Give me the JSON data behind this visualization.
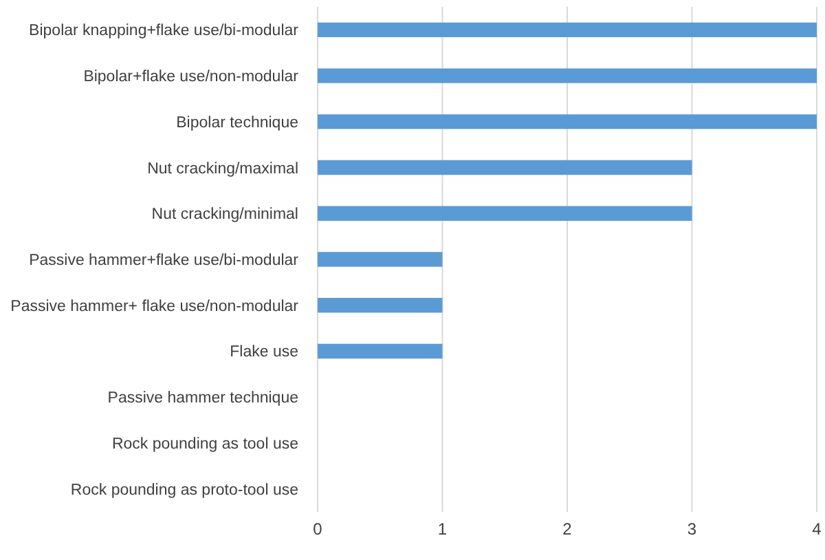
{
  "chart_data": {
    "type": "bar",
    "orientation": "horizontal",
    "categories": [
      "Bipolar knapping+flake use/bi-modular",
      "Bipolar+flake use/non-modular",
      "Bipolar technique",
      "Nut cracking/maximal",
      "Nut cracking/minimal",
      "Passive hammer+flake use/bi-modular",
      "Passive hammer+ flake use/non-modular",
      "Flake use",
      "Passive hammer technique",
      "Rock pounding as tool use",
      "Rock pounding as proto-tool use"
    ],
    "values": [
      4,
      4,
      4,
      3,
      3,
      1,
      1,
      1,
      0,
      0,
      0
    ],
    "color": "#5b9bd5",
    "xlim": [
      0,
      4
    ],
    "xticks": [
      0,
      1,
      2,
      3,
      4
    ],
    "grid": "x"
  }
}
